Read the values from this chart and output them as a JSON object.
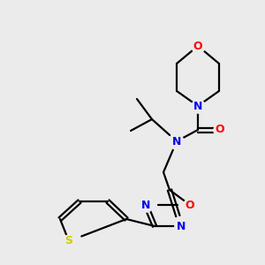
{
  "background_color": "#ebebeb",
  "bond_color": "#000000",
  "atom_colors": {
    "N": "#0000ee",
    "O": "#ff0000",
    "S": "#cccc00",
    "C": "#000000"
  },
  "figsize": [
    3.0,
    3.0
  ],
  "dpi": 100
}
